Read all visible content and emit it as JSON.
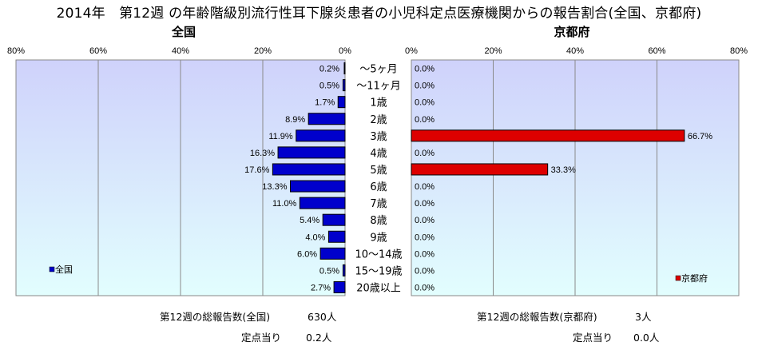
{
  "page": {
    "title": "2014年　第12週 の年齢階級別流行性耳下腺炎患者の小児科定点医療機関からの報告割合(全国、京都府)"
  },
  "chart_data": [
    {
      "type": "bar",
      "orientation": "horizontal",
      "title": "全国",
      "x_direction": "reversed",
      "xlim": [
        0,
        80
      ],
      "x_ticks": [
        "80%",
        "60%",
        "40%",
        "20%",
        "0%"
      ],
      "categories": [
        "～5ヶ月",
        "～11ヶ月",
        "1歳",
        "2歳",
        "3歳",
        "4歳",
        "5歳",
        "6歳",
        "7歳",
        "8歳",
        "9歳",
        "10～14歳",
        "15～19歳",
        "20歳以上"
      ],
      "series": [
        {
          "name": "全国",
          "color": "#0000cc",
          "values": [
            0.2,
            0.5,
            1.7,
            8.9,
            11.9,
            16.3,
            17.6,
            13.3,
            11.0,
            5.4,
            4.0,
            6.0,
            0.5,
            2.7
          ],
          "labels": [
            "0.2%",
            "0.5%",
            "1.7%",
            "8.9%",
            "11.9%",
            "16.3%",
            "17.6%",
            "13.3%",
            "11.0%",
            "5.4%",
            "4.0%",
            "6.0%",
            "0.5%",
            "2.7%"
          ]
        }
      ],
      "legend": "bottom-left",
      "grid": true,
      "plot_background": "gradient lavender to light cyan"
    },
    {
      "type": "bar",
      "orientation": "horizontal",
      "title": "京都府",
      "xlim": [
        0,
        80
      ],
      "x_ticks": [
        "0%",
        "20%",
        "40%",
        "60%",
        "80%"
      ],
      "categories": [
        "～5ヶ月",
        "～11ヶ月",
        "1歳",
        "2歳",
        "3歳",
        "4歳",
        "5歳",
        "6歳",
        "7歳",
        "8歳",
        "9歳",
        "10～14歳",
        "15～19歳",
        "20歳以上"
      ],
      "series": [
        {
          "name": "京都府",
          "color": "#dd0000",
          "values": [
            0.0,
            0.0,
            0.0,
            0.0,
            66.7,
            0.0,
            33.3,
            0.0,
            0.0,
            0.0,
            0.0,
            0.0,
            0.0,
            0.0
          ],
          "labels": [
            "0.0%",
            "0.0%",
            "0.0%",
            "0.0%",
            "66.7%",
            "0.0%",
            "33.3%",
            "0.0%",
            "0.0%",
            "0.0%",
            "0.0%",
            "0.0%",
            "0.0%",
            "0.0%"
          ]
        }
      ],
      "legend": "bottom-right",
      "grid": true,
      "plot_background": "gradient lavender to light cyan"
    }
  ],
  "footer": {
    "national_total_label": "第12週の総報告数(全国)",
    "national_total_value": "630人",
    "national_per_site_label": "定点当り",
    "national_per_site_value": "0.2人",
    "kyoto_total_label": "第12週の総報告数(京都府)",
    "kyoto_total_value": "3人",
    "kyoto_per_site_label": "定点当り",
    "kyoto_per_site_value": "0.0人"
  }
}
